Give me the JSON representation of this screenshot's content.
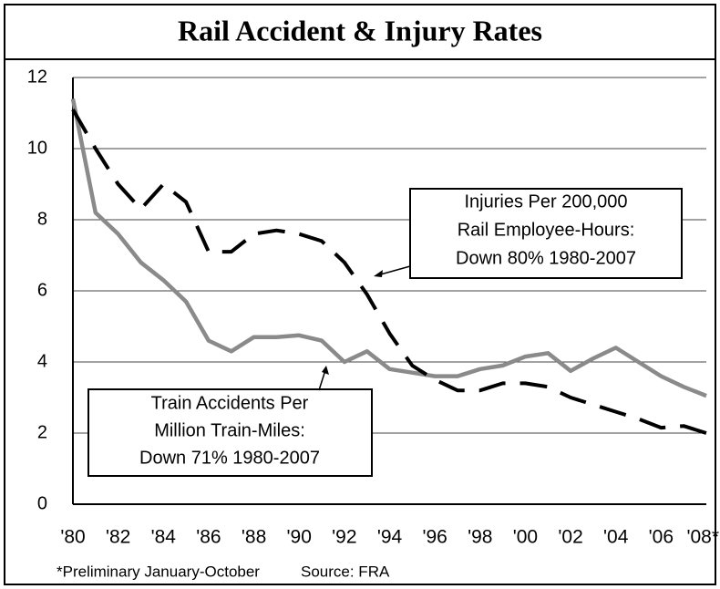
{
  "chart_data": {
    "type": "line",
    "title": "Rail Accident & Injury Rates",
    "categories": [
      "'80",
      null,
      "'82",
      null,
      "'84",
      null,
      "'86",
      null,
      "'88",
      null,
      "'90",
      null,
      "'92",
      null,
      "'94",
      null,
      "'96",
      null,
      "'98",
      null,
      "'00",
      null,
      "'02",
      null,
      "'04",
      null,
      "'06",
      null,
      "'08*"
    ],
    "series": [
      {
        "color": "#8a8a8a",
        "dash": false,
        "values": [
          11.4,
          8.2,
          7.6,
          6.8,
          6.3,
          5.7,
          4.6,
          4.3,
          4.7,
          4.7,
          4.75,
          4.6,
          4.0,
          4.3,
          3.8,
          3.7,
          3.6,
          3.6,
          3.8,
          3.9,
          4.15,
          4.25,
          3.75,
          4.1,
          4.4,
          4.0,
          3.6,
          3.3,
          3.05
        ]
      },
      {
        "color": "#000000",
        "dash": true,
        "values": [
          11.1,
          10.0,
          9.0,
          8.3,
          9.0,
          8.5,
          7.1,
          7.1,
          7.6,
          7.7,
          7.6,
          7.4,
          6.8,
          5.9,
          4.8,
          3.9,
          3.5,
          3.2,
          3.2,
          3.4,
          3.4,
          3.3,
          3.0,
          2.8,
          2.6,
          2.4,
          2.15,
          2.2,
          2.0
        ]
      }
    ],
    "ylim": [
      0,
      12
    ],
    "yticks": [
      0,
      2,
      4,
      6,
      8,
      10,
      12
    ],
    "grid": true,
    "annotations": [
      [
        "Injuries Per 200,000",
        "Rail Employee-Hours:",
        "Down 80% 1980-2007"
      ],
      [
        "Train Accidents Per",
        "Million Train-Miles:",
        "Down 71% 1980-2007"
      ]
    ],
    "footnote": "*Preliminary January-October",
    "source": "Source: FRA"
  }
}
